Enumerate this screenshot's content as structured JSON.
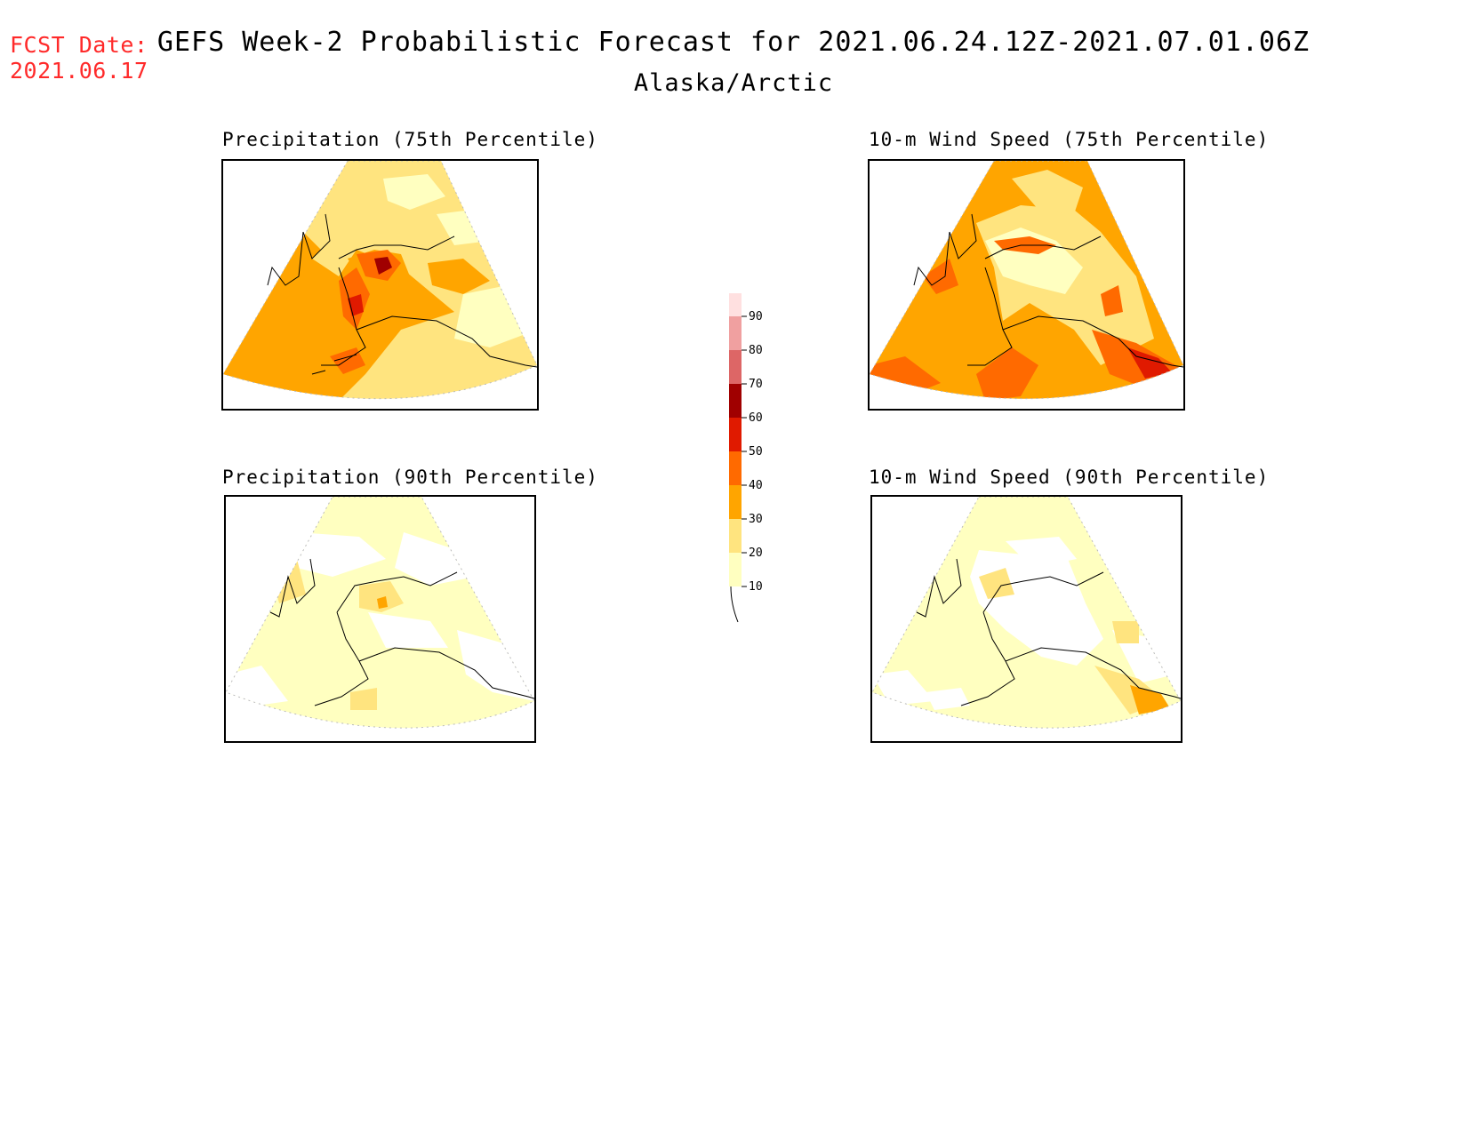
{
  "header": {
    "fcst_label": "FCST Date:",
    "fcst_date": "2021.06.17",
    "title": "GEFS Week-2 Probabilistic Forecast for 2021.06.24.12Z-2021.07.01.06Z",
    "region": "Alaska/Arctic"
  },
  "panels": [
    {
      "title": "Precipitation (75th Percentile)"
    },
    {
      "title": "10-m Wind Speed (75th Percentile)"
    },
    {
      "title": "Precipitation (90th Percentile)"
    },
    {
      "title": "10-m Wind Speed (90th Percentile)"
    }
  ],
  "legend": {
    "levels": [
      "10",
      "20",
      "30",
      "40",
      "50",
      "60",
      "70",
      "80",
      "90"
    ],
    "colors": [
      "#ffffc0",
      "#ffe47f",
      "#ffa500",
      "#ff6a00",
      "#e01a00",
      "#a00000",
      "#dd6666",
      "#f0a0a0",
      "#ffe0e0"
    ]
  }
}
